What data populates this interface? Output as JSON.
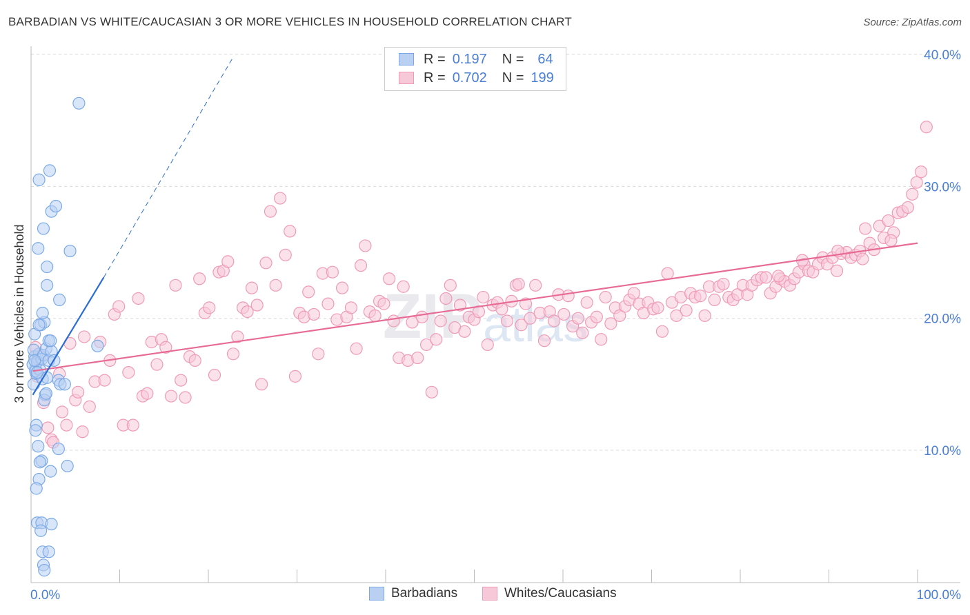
{
  "title": "BARBADIAN VS WHITE/CAUCASIAN 3 OR MORE VEHICLES IN HOUSEHOLD CORRELATION CHART",
  "source": "Source: ZipAtlas.com",
  "legend_top": {
    "rows": [
      {
        "r_label": "R =",
        "r_value": "0.197",
        "n_label": "N =",
        "n_value": "64"
      },
      {
        "r_label": "R =",
        "r_value": "0.702",
        "n_label": "N =",
        "n_value": "199"
      }
    ]
  },
  "legend_bottom": [
    "Barbadians",
    "Whites/Caucasians"
  ],
  "colors": {
    "blue": "#7aaae6",
    "blue_fill": "#b9d0f2",
    "blue_line": "#2a6dd1",
    "pink": "#ef9bb6",
    "pink_fill": "#f7c9d8",
    "pink_line": "#e86b95",
    "axis_text": "#4a7fd4"
  },
  "chart_data": {
    "type": "scatter",
    "title": "BARBADIAN VS WHITE/CAUCASIAN 3 OR MORE VEHICLES IN HOUSEHOLD CORRELATION CHART",
    "ylabel": "3 or more Vehicles in Household",
    "xlabel": "",
    "x_tick_labels": [
      "0.0%",
      "100.0%"
    ],
    "y_tick_labels": [
      "10.0%",
      "20.0%",
      "30.0%",
      "40.0%"
    ],
    "xlim": [
      0,
      100
    ],
    "ylim": [
      0,
      41
    ],
    "grid": true,
    "legend_position": "top-center",
    "series": [
      {
        "name": "Barbadians",
        "r": 0.197,
        "n": 64,
        "trend": {
          "x0": 0.2,
          "y0": 14.2,
          "x1": 8.2,
          "y1": 23.1,
          "dash_to_x": 22.8,
          "dash_to_y": 39.8
        },
        "points": [
          [
            0.3,
            15.0
          ],
          [
            0.5,
            16.2
          ],
          [
            0.4,
            17.1
          ],
          [
            0.6,
            15.8
          ],
          [
            0.8,
            16.9
          ],
          [
            0.2,
            16.5
          ],
          [
            0.9,
            17.3
          ],
          [
            0.5,
            16.0
          ],
          [
            0.7,
            16.7
          ],
          [
            0.3,
            17.6
          ],
          [
            1.0,
            16.1
          ],
          [
            1.2,
            16.9
          ],
          [
            1.4,
            17.2
          ],
          [
            1.7,
            17.7
          ],
          [
            2.0,
            16.8
          ],
          [
            2.3,
            17.5
          ],
          [
            2.6,
            16.8
          ],
          [
            1.1,
            19.5
          ],
          [
            1.5,
            19.7
          ],
          [
            1.3,
            20.4
          ],
          [
            2.0,
            18.3
          ],
          [
            2.2,
            18.3
          ],
          [
            1.3,
            15.4
          ],
          [
            1.8,
            15.5
          ],
          [
            1.6,
            14.2
          ],
          [
            3.1,
            15.3
          ],
          [
            3.3,
            15.0
          ],
          [
            3.8,
            15.0
          ],
          [
            1.5,
            13.8
          ],
          [
            1.7,
            14.3
          ],
          [
            0.6,
            11.9
          ],
          [
            0.5,
            11.5
          ],
          [
            0.8,
            10.3
          ],
          [
            3.1,
            10.1
          ],
          [
            1.2,
            9.2
          ],
          [
            1.0,
            9.1
          ],
          [
            2.2,
            8.4
          ],
          [
            4.1,
            8.8
          ],
          [
            0.9,
            7.8
          ],
          [
            0.6,
            7.1
          ],
          [
            0.7,
            4.5
          ],
          [
            1.2,
            4.5
          ],
          [
            2.3,
            4.4
          ],
          [
            1.1,
            3.9
          ],
          [
            1.3,
            2.3
          ],
          [
            2.0,
            2.3
          ],
          [
            1.4,
            1.3
          ],
          [
            1.5,
            0.9
          ],
          [
            0.9,
            30.5
          ],
          [
            2.1,
            31.2
          ],
          [
            2.3,
            28.1
          ],
          [
            2.8,
            28.5
          ],
          [
            1.4,
            26.8
          ],
          [
            4.4,
            25.1
          ],
          [
            0.8,
            25.3
          ],
          [
            1.8,
            23.9
          ],
          [
            1.8,
            22.5
          ],
          [
            3.2,
            21.4
          ],
          [
            5.4,
            36.3
          ],
          [
            7.5,
            17.9
          ],
          [
            0.4,
            18.8
          ],
          [
            0.9,
            19.5
          ],
          [
            0.4,
            16.8
          ],
          [
            0.7,
            15.9
          ]
        ]
      },
      {
        "name": "Whites/Caucasians",
        "r": 0.702,
        "n": 199,
        "trend": {
          "x0": 0.2,
          "y0": 16.0,
          "x1": 100.0,
          "y1": 25.7
        },
        "points": [
          [
            0.5,
            17.8
          ],
          [
            0.7,
            15.6
          ],
          [
            1.0,
            17.1
          ],
          [
            1.4,
            13.6
          ],
          [
            1.9,
            11.7
          ],
          [
            2.3,
            10.8
          ],
          [
            2.5,
            10.6
          ],
          [
            3.2,
            15.8
          ],
          [
            3.5,
            12.9
          ],
          [
            4.0,
            11.9
          ],
          [
            4.4,
            18.1
          ],
          [
            5.0,
            13.8
          ],
          [
            5.3,
            14.4
          ],
          [
            5.8,
            11.4
          ],
          [
            6.0,
            18.6
          ],
          [
            6.6,
            13.3
          ],
          [
            7.2,
            15.2
          ],
          [
            7.8,
            18.2
          ],
          [
            8.3,
            15.3
          ],
          [
            8.9,
            16.8
          ],
          [
            9.4,
            20.3
          ],
          [
            9.9,
            20.9
          ],
          [
            10.4,
            11.9
          ],
          [
            11.0,
            15.9
          ],
          [
            11.5,
            11.9
          ],
          [
            12.1,
            21.5
          ],
          [
            12.6,
            14.1
          ],
          [
            13.1,
            14.3
          ],
          [
            13.6,
            18.2
          ],
          [
            14.2,
            16.5
          ],
          [
            14.7,
            18.4
          ],
          [
            15.2,
            17.8
          ],
          [
            15.8,
            14.1
          ],
          [
            16.3,
            22.5
          ],
          [
            16.9,
            15.3
          ],
          [
            17.4,
            14.0
          ],
          [
            17.9,
            17.1
          ],
          [
            18.5,
            16.8
          ],
          [
            19.0,
            23.0
          ],
          [
            19.6,
            20.4
          ],
          [
            20.1,
            20.8
          ],
          [
            20.7,
            15.7
          ],
          [
            21.2,
            23.5
          ],
          [
            21.7,
            23.6
          ],
          [
            22.2,
            24.3
          ],
          [
            22.8,
            17.3
          ],
          [
            23.3,
            18.6
          ],
          [
            23.9,
            20.8
          ],
          [
            24.4,
            20.5
          ],
          [
            24.9,
            22.3
          ],
          [
            25.5,
            21.0
          ],
          [
            26.0,
            15.0
          ],
          [
            26.5,
            24.2
          ],
          [
            27.0,
            28.1
          ],
          [
            27.6,
            22.5
          ],
          [
            28.1,
            29.1
          ],
          [
            28.7,
            24.8
          ],
          [
            29.2,
            26.6
          ],
          [
            29.8,
            15.6
          ],
          [
            30.3,
            20.4
          ],
          [
            30.8,
            20.1
          ],
          [
            31.3,
            22.0
          ],
          [
            31.9,
            20.3
          ],
          [
            32.4,
            17.3
          ],
          [
            32.9,
            23.4
          ],
          [
            33.5,
            21.1
          ],
          [
            34.0,
            23.5
          ],
          [
            34.5,
            19.9
          ],
          [
            35.1,
            22.3
          ],
          [
            35.6,
            20.1
          ],
          [
            36.1,
            20.8
          ],
          [
            36.7,
            17.7
          ],
          [
            37.2,
            24.0
          ],
          [
            37.7,
            25.5
          ],
          [
            38.2,
            20.5
          ],
          [
            38.8,
            20.2
          ],
          [
            39.3,
            21.3
          ],
          [
            39.8,
            21.1
          ],
          [
            40.4,
            23.0
          ],
          [
            40.9,
            19.8
          ],
          [
            41.5,
            17.0
          ],
          [
            42.0,
            22.4
          ],
          [
            42.5,
            16.8
          ],
          [
            43.0,
            19.7
          ],
          [
            43.6,
            17.0
          ],
          [
            44.1,
            20.1
          ],
          [
            44.6,
            18.0
          ],
          [
            45.2,
            14.4
          ],
          [
            45.7,
            18.4
          ],
          [
            46.2,
            19.8
          ],
          [
            46.8,
            21.5
          ],
          [
            47.3,
            22.5
          ],
          [
            47.8,
            19.3
          ],
          [
            48.4,
            21.0
          ],
          [
            48.9,
            19.0
          ],
          [
            49.4,
            20.1
          ],
          [
            50.0,
            19.9
          ],
          [
            50.5,
            20.5
          ],
          [
            51.0,
            21.6
          ],
          [
            51.5,
            18.0
          ],
          [
            52.1,
            21.0
          ],
          [
            52.6,
            21.2
          ],
          [
            53.1,
            20.7
          ],
          [
            53.7,
            19.8
          ],
          [
            54.2,
            21.3
          ],
          [
            54.7,
            22.5
          ],
          [
            55.3,
            19.5
          ],
          [
            55.8,
            21.1
          ],
          [
            56.3,
            20.0
          ],
          [
            56.9,
            22.5
          ],
          [
            57.4,
            20.4
          ],
          [
            57.9,
            18.3
          ],
          [
            58.5,
            20.5
          ],
          [
            59.0,
            19.8
          ],
          [
            59.5,
            21.8
          ],
          [
            60.1,
            20.3
          ],
          [
            60.6,
            21.7
          ],
          [
            61.1,
            19.4
          ],
          [
            61.7,
            20.0
          ],
          [
            62.2,
            18.9
          ],
          [
            62.7,
            21.2
          ],
          [
            63.2,
            19.7
          ],
          [
            63.8,
            20.1
          ],
          [
            64.3,
            18.4
          ],
          [
            64.8,
            21.6
          ],
          [
            65.4,
            19.6
          ],
          [
            65.9,
            20.8
          ],
          [
            66.4,
            20.2
          ],
          [
            67.0,
            20.9
          ],
          [
            67.5,
            21.4
          ],
          [
            68.0,
            21.9
          ],
          [
            68.6,
            21.1
          ],
          [
            69.1,
            20.4
          ],
          [
            69.6,
            21.2
          ],
          [
            70.2,
            20.7
          ],
          [
            70.7,
            20.8
          ],
          [
            71.2,
            19.0
          ],
          [
            71.8,
            23.4
          ],
          [
            72.3,
            21.2
          ],
          [
            72.8,
            20.2
          ],
          [
            73.3,
            21.6
          ],
          [
            73.9,
            20.6
          ],
          [
            74.4,
            21.9
          ],
          [
            74.9,
            21.6
          ],
          [
            75.5,
            21.7
          ],
          [
            76.0,
            20.2
          ],
          [
            76.5,
            22.4
          ],
          [
            77.1,
            21.4
          ],
          [
            77.6,
            22.4
          ],
          [
            78.1,
            22.6
          ],
          [
            78.7,
            21.6
          ],
          [
            79.2,
            21.4
          ],
          [
            79.7,
            21.8
          ],
          [
            80.3,
            22.5
          ],
          [
            80.8,
            21.8
          ],
          [
            81.3,
            22.5
          ],
          [
            81.9,
            22.9
          ],
          [
            82.4,
            23.1
          ],
          [
            82.9,
            23.1
          ],
          [
            83.4,
            21.9
          ],
          [
            84.0,
            22.4
          ],
          [
            84.5,
            23.0
          ],
          [
            85.0,
            22.8
          ],
          [
            85.6,
            22.5
          ],
          [
            86.1,
            23.0
          ],
          [
            86.6,
            23.5
          ],
          [
            87.2,
            24.1
          ],
          [
            87.7,
            23.6
          ],
          [
            88.2,
            23.5
          ],
          [
            88.8,
            24.1
          ],
          [
            89.3,
            24.6
          ],
          [
            89.8,
            24.1
          ],
          [
            90.4,
            24.6
          ],
          [
            90.9,
            23.6
          ],
          [
            91.4,
            24.9
          ],
          [
            92.0,
            25.0
          ],
          [
            92.5,
            24.6
          ],
          [
            93.0,
            24.8
          ],
          [
            93.5,
            25.1
          ],
          [
            94.1,
            26.8
          ],
          [
            94.6,
            25.7
          ],
          [
            95.1,
            25.2
          ],
          [
            95.7,
            27.0
          ],
          [
            96.2,
            26.1
          ],
          [
            96.7,
            27.4
          ],
          [
            97.3,
            26.5
          ],
          [
            97.8,
            28.0
          ],
          [
            98.3,
            28.1
          ],
          [
            98.9,
            28.4
          ],
          [
            99.4,
            29.4
          ],
          [
            99.9,
            30.3
          ],
          [
            100.4,
            31.1
          ],
          [
            101.0,
            34.5
          ],
          [
            97.0,
            25.9
          ],
          [
            93.8,
            24.5
          ],
          [
            91.0,
            25.1
          ],
          [
            87.0,
            24.4
          ],
          [
            84.3,
            23.2
          ],
          [
            55.0,
            22.6
          ]
        ]
      }
    ]
  }
}
